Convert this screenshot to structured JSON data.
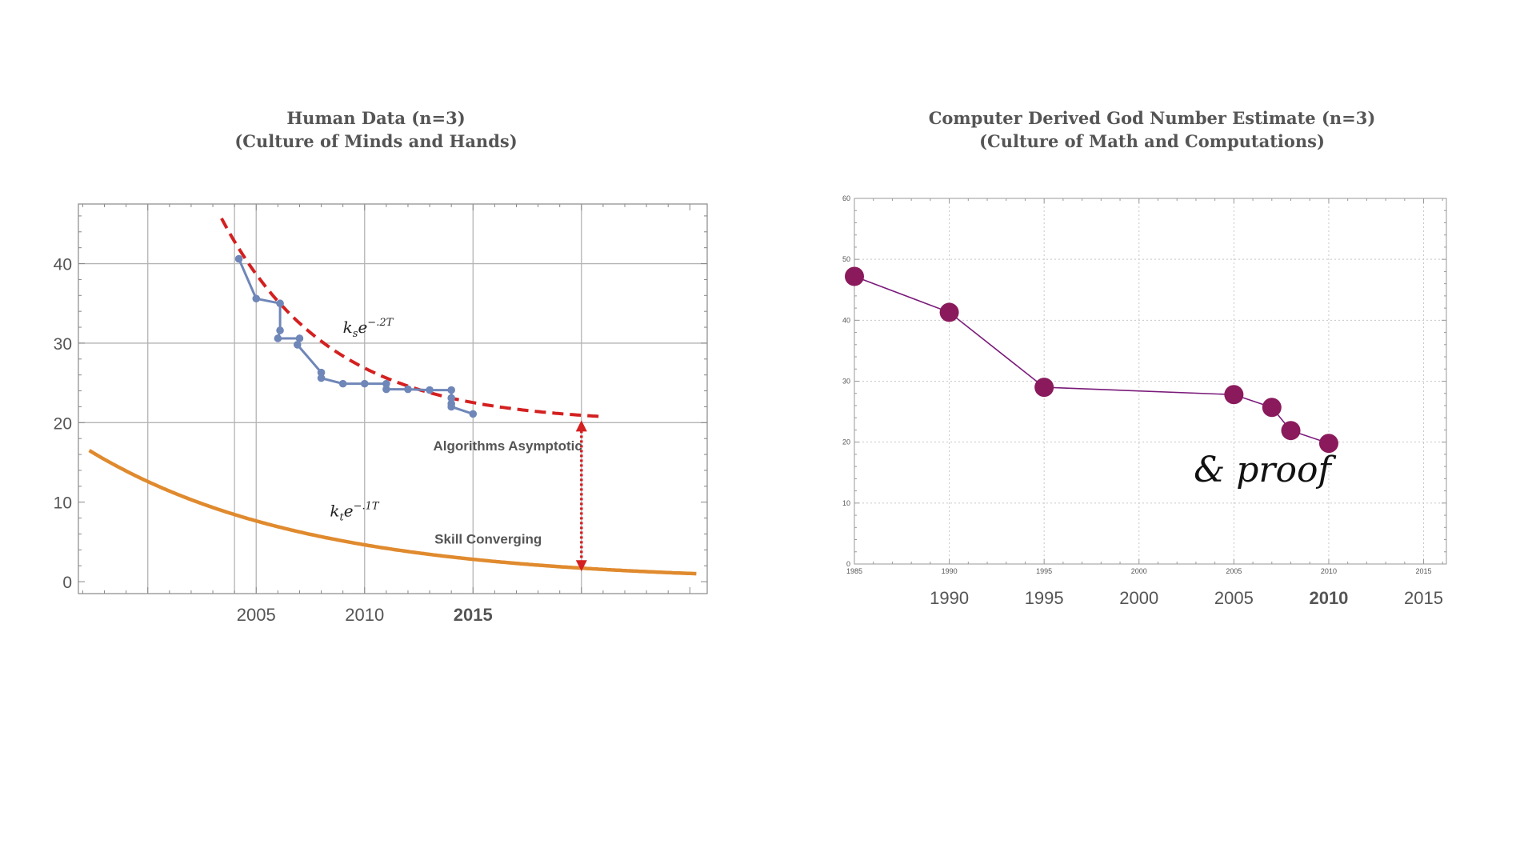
{
  "chart_data": [
    {
      "type": "line",
      "title": "Human Data (n=3)",
      "subtitle": "(Culture of Minds and Hands)",
      "xlim": [
        1996.8,
        2025.8
      ],
      "ylim": [
        -1.5,
        47.5
      ],
      "y_ticks": [
        0,
        10,
        20,
        30,
        40
      ],
      "x_tick_labels": [
        {
          "value": 2005,
          "label": "2005",
          "bold": false
        },
        {
          "value": 2010,
          "label": "2010",
          "bold": false
        },
        {
          "value": 2015,
          "label": "2015",
          "bold": true
        }
      ],
      "vertical_gridlines": [
        2000,
        2004,
        2005,
        2010,
        2015,
        2020
      ],
      "horizontal_gridlines": [
        20,
        30,
        40
      ],
      "series": [
        {
          "name": "Human data",
          "color": "#6f86b8",
          "style": "line-markers",
          "points": [
            [
              2004.2,
              40.6
            ],
            [
              2005.0,
              35.6
            ],
            [
              2006.1,
              35.0
            ],
            [
              2006.1,
              31.6
            ],
            [
              2006.0,
              30.6
            ],
            [
              2007.0,
              30.6
            ],
            [
              2006.9,
              29.8
            ],
            [
              2008.0,
              26.3
            ],
            [
              2008.0,
              25.6
            ],
            [
              2009.0,
              24.9
            ],
            [
              2010.0,
              24.9
            ],
            [
              2011.0,
              24.9
            ],
            [
              2011.0,
              24.2
            ],
            [
              2012.0,
              24.2
            ],
            [
              2013.0,
              24.1
            ],
            [
              2014.0,
              24.1
            ],
            [
              2014.0,
              23.1
            ],
            [
              2014.0,
              22.4
            ],
            [
              2014.0,
              22.0
            ],
            [
              2015.0,
              21.1
            ]
          ]
        },
        {
          "name": "Fit k_s e^{-.2T}",
          "color": "#d42020",
          "style": "dashed",
          "function": {
            "asymptote": 20,
            "amplitude": 25.7,
            "rate": 0.2,
            "t0": 2003.4,
            "x_from": 2003.4,
            "x_to": 2021
          }
        },
        {
          "name": "Fit k_t e^{-.1T}",
          "color": "#e08a2e",
          "style": "solid",
          "function": {
            "asymptote": 0,
            "amplitude": 16.5,
            "rate": 0.1,
            "t0": 1997.3,
            "x_from": 1997.3,
            "x_to": 2025.3
          }
        }
      ],
      "arrow": {
        "x": 2020,
        "y_from": 20,
        "y_to": 1.6,
        "color": "#d42020"
      },
      "annotations": [
        {
          "text": "Algorithms Asymptotic",
          "x": 2016.6,
          "y": 16.5
        },
        {
          "text": "Skill Converging",
          "x": 2015.7,
          "y": 4.8
        }
      ],
      "formulas": [
        {
          "base": "k",
          "sub": "s",
          "rest": "e",
          "sup": "−.2T",
          "x": 2009.0,
          "y": 31.3
        },
        {
          "base": "k",
          "sub": "t",
          "rest": "e",
          "sup": "−.1T",
          "x": 2008.4,
          "y": 8.2
        }
      ]
    },
    {
      "type": "line",
      "title": "Computer Derived God Number Estimate (n=3)",
      "subtitle": "(Culture of Math and Computations)",
      "xlim": [
        1985,
        2016.2
      ],
      "ylim": [
        0,
        60
      ],
      "y_ticks": [
        0,
        10,
        20,
        30,
        40,
        50,
        60
      ],
      "x_ticks": [
        1985,
        1990,
        1995,
        2000,
        2005,
        2010,
        2015
      ],
      "x_tick_labels_large": [
        {
          "value": 1990,
          "label": "1990",
          "bold": false
        },
        {
          "value": 1995,
          "label": "1995",
          "bold": false
        },
        {
          "value": 2000,
          "label": "2000",
          "bold": false
        },
        {
          "value": 2005,
          "label": "2005",
          "bold": false
        },
        {
          "value": 2010,
          "label": "2010",
          "bold": true
        },
        {
          "value": 2015,
          "label": "2015",
          "bold": false
        }
      ],
      "series": [
        {
          "name": "God number estimate",
          "color": "#8a1a5c",
          "line_color": "#7a1a7a",
          "x": [
            1985,
            1990,
            1995,
            2005,
            2007,
            2008,
            2010
          ],
          "y": [
            47.2,
            41.3,
            29.0,
            27.8,
            25.7,
            21.9,
            19.8
          ]
        }
      ],
      "annotation": {
        "text": "& proof",
        "x": 2006.5,
        "y": 13.5
      }
    }
  ]
}
